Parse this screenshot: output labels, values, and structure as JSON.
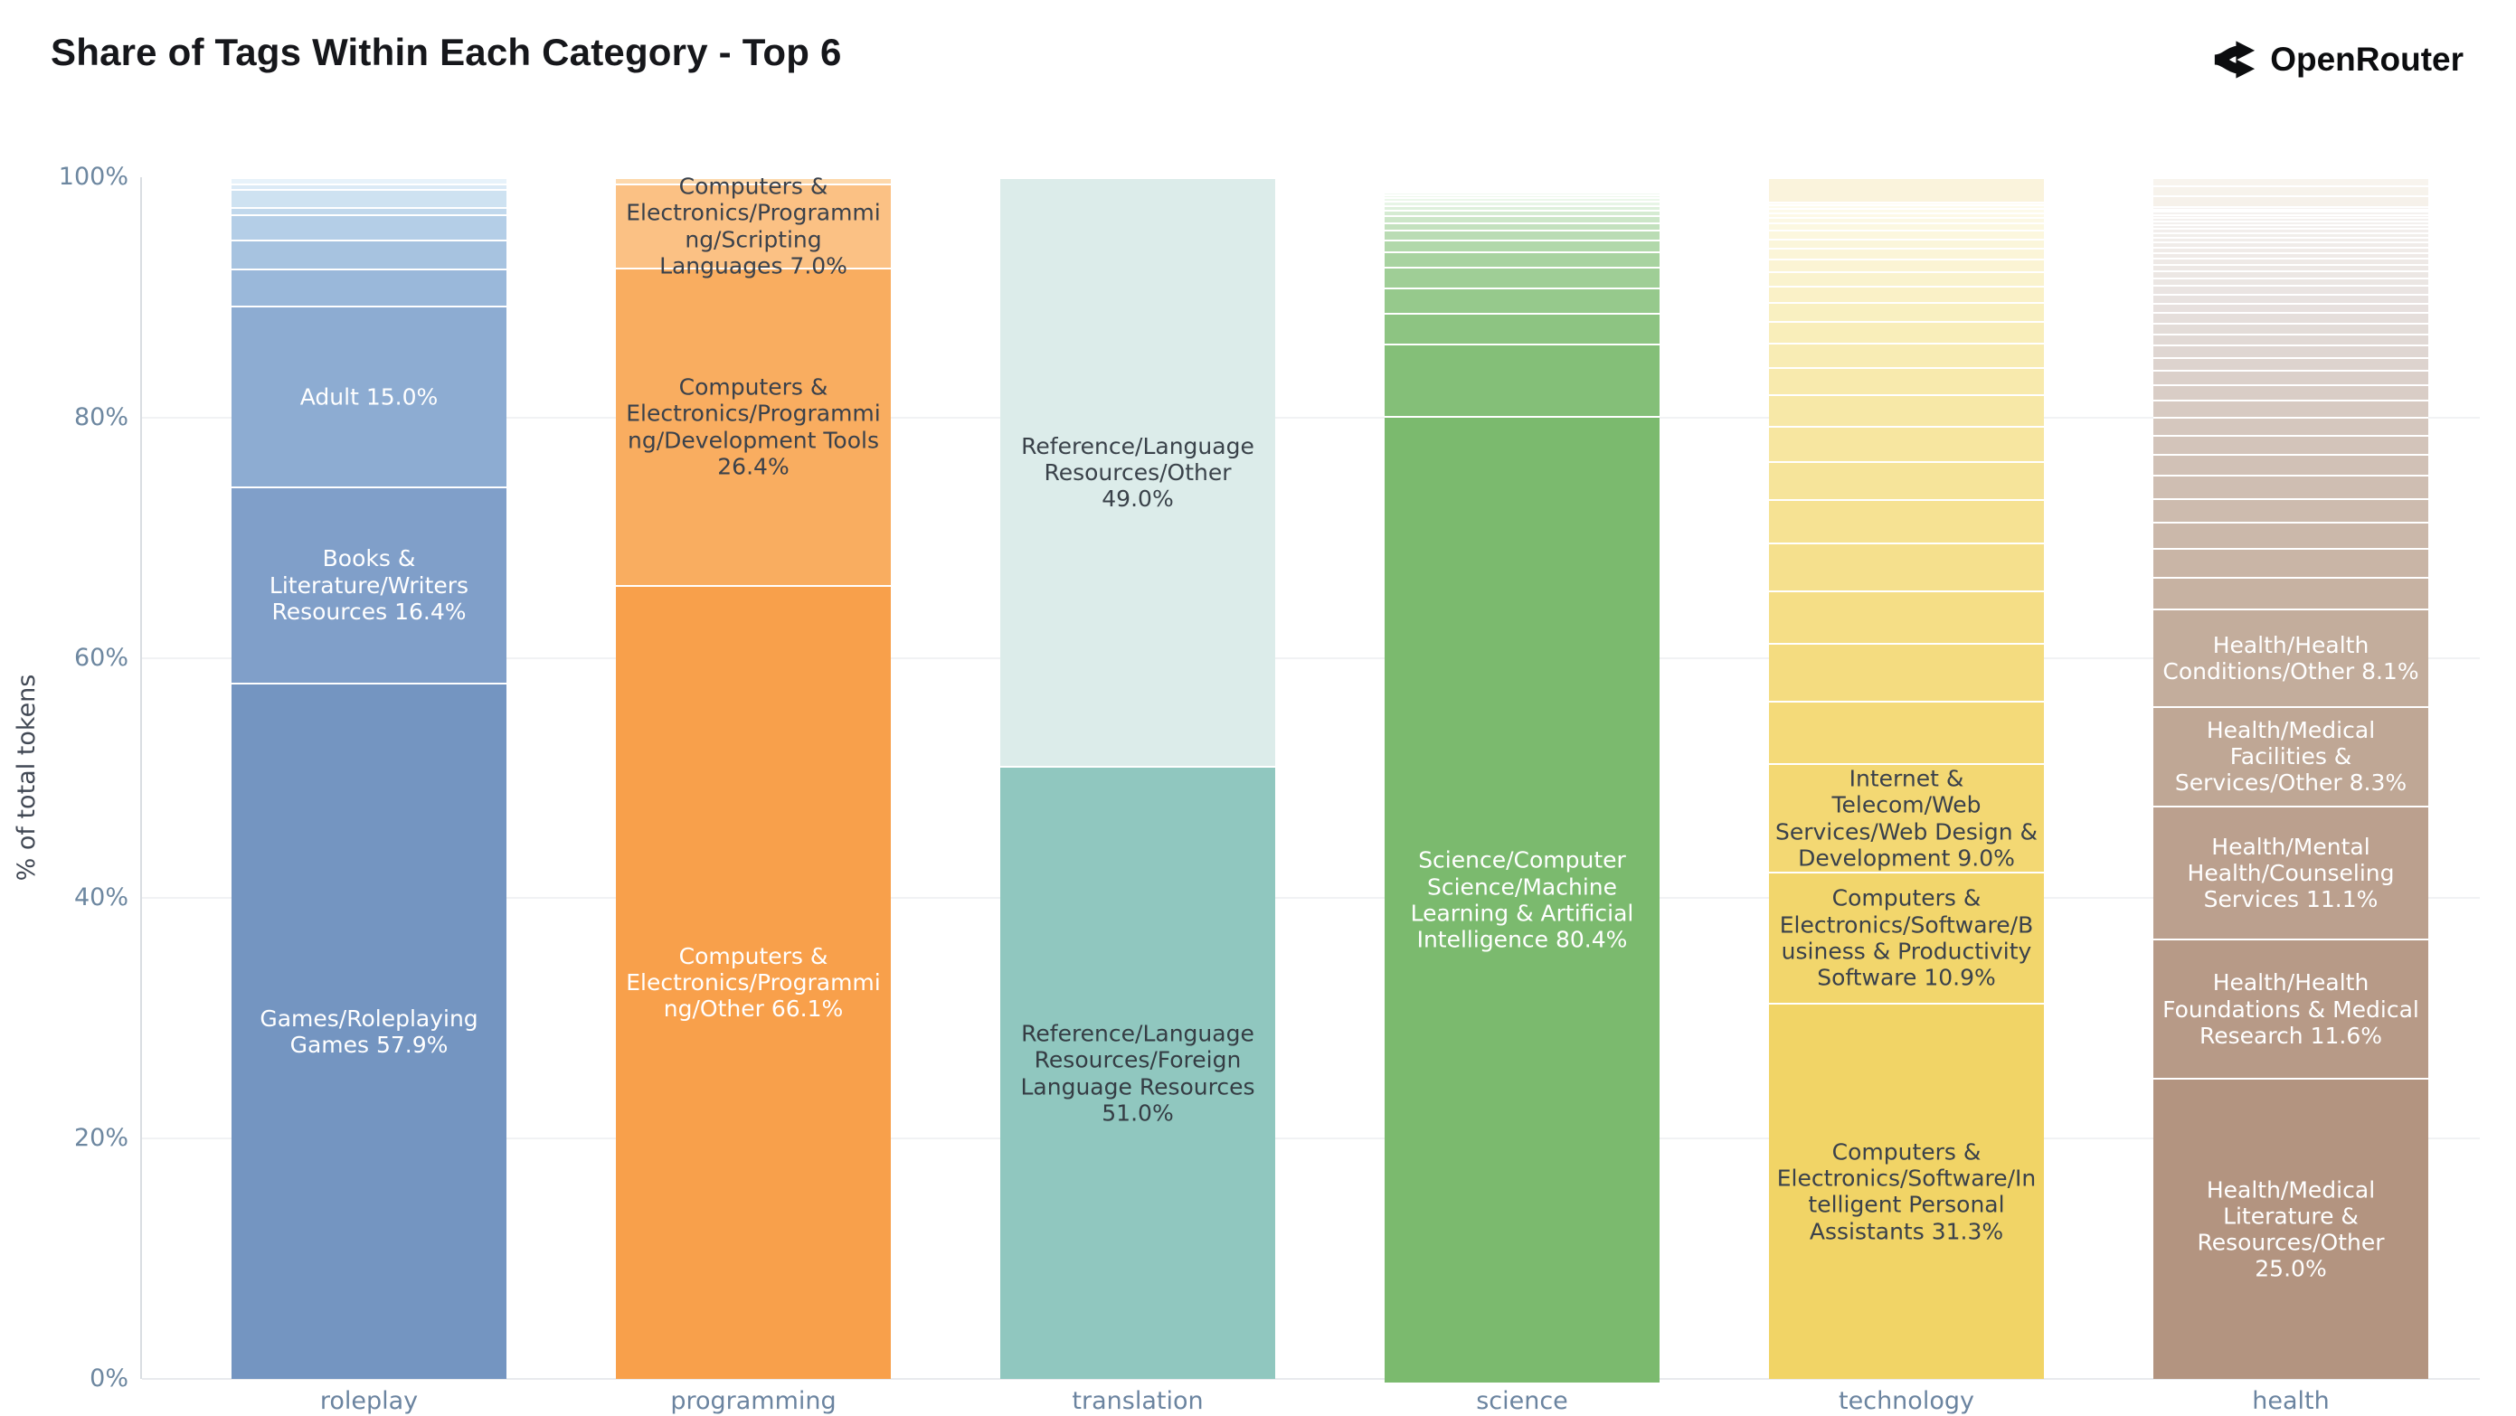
{
  "title": "Share of Tags Within Each Category - Top 6",
  "brand": {
    "name": "OpenRouter",
    "icon": "openrouter-fork-icon",
    "color": "#0c0d0f"
  },
  "chart_data": {
    "type": "bar",
    "variant": "stacked-percent-column",
    "title": "Share of Tags Within Each Category - Top 6",
    "xlabel": "",
    "ylabel": "% of total tokens",
    "ylim": [
      0,
      100
    ],
    "grid": "faint horizontal gridlines at 20/40/60/80, light left axis line",
    "legend_position": "none (labels drawn inside segments)",
    "yticks": [
      {
        "label": "0%",
        "value": 0
      },
      {
        "label": "20%",
        "value": 20
      },
      {
        "label": "40%",
        "value": 40
      },
      {
        "label": "60%",
        "value": 60
      },
      {
        "label": "80%",
        "value": 80
      },
      {
        "label": "100%",
        "value": 100
      }
    ],
    "categories": [
      "roleplay",
      "programming",
      "translation",
      "science",
      "technology",
      "health"
    ],
    "label_dark_color": "#3a414b",
    "label_light_color": "#ffffff",
    "bars": [
      {
        "category": "roleplay",
        "segments": [
          {
            "label": "Games/Roleplaying Games 57.9%",
            "v": 57.9,
            "c": "#7495c1",
            "tc": "#ffffff"
          },
          {
            "label": "Books & Literature/Writers Resources 16.4%",
            "v": 16.4,
            "c": "#809fc9",
            "tc": "#ffffff"
          },
          {
            "label": "Adult 15.0%",
            "v": 15.0,
            "c": "#8dacd2",
            "tc": "#ffffff"
          },
          {
            "v": 3.1,
            "c": "#9ab8da"
          },
          {
            "v": 2.4,
            "c": "#a7c3e0"
          },
          {
            "v": 2.1,
            "c": "#b4cee7"
          },
          {
            "v": 0.6,
            "c": "#c1d8ec"
          },
          {
            "v": 1.5,
            "c": "#cee2f1"
          },
          {
            "v": 0.5,
            "c": "#dbeaf6"
          },
          {
            "v": 0.5,
            "c": "#e7f2fa"
          }
        ]
      },
      {
        "category": "programming",
        "segments": [
          {
            "label": "Computers & Electronics/Programming/Other 66.1%",
            "v": 66.1,
            "c": "#f8a04b",
            "tc": "#ffffff"
          },
          {
            "label": "Computers & Electronics/Programming/Development Tools 26.4%",
            "v": 26.4,
            "c": "#f9ad60",
            "tc": "#3a414b"
          },
          {
            "label": "Computers & Electronics/Programming/Scripting Languages 7.0%",
            "v": 7.0,
            "c": "#fbc184",
            "tc": "#3a414b"
          },
          {
            "v": 0.5,
            "c": "#fdd8ab"
          }
        ]
      },
      {
        "category": "translation",
        "segments": [
          {
            "label": "Reference/Language Resources/Foreign Language Resources 51.0%",
            "v": 51.0,
            "c": "#90c7bf",
            "tc": "#353d44"
          },
          {
            "label": "Reference/Language Resources/Other 49.0%",
            "v": 49.0,
            "c": "#dcecea",
            "tc": "#3a424a"
          }
        ]
      },
      {
        "category": "science",
        "segments": [
          {
            "label": "Science/Computer Science/Machine Learning & Artificial Intelligence 80.4%",
            "v": 80.4,
            "c": "#7bba6e",
            "tc": "#ffffff"
          },
          {
            "v": 6.0,
            "c": "#84bf78"
          },
          {
            "v": 2.6,
            "c": "#8dc482"
          },
          {
            "v": 2.1,
            "c": "#96c98c"
          },
          {
            "v": 1.7,
            "c": "#9fce96"
          },
          {
            "v": 1.3,
            "c": "#a8d3a0"
          },
          {
            "v": 1.0,
            "c": "#b1d8aa"
          },
          {
            "v": 0.8,
            "c": "#badcb4"
          },
          {
            "v": 0.65,
            "c": "#c3e1be"
          },
          {
            "v": 0.55,
            "c": "#cce6c8"
          },
          {
            "v": 0.45,
            "c": "#d5ebd2"
          },
          {
            "v": 0.4,
            "c": "#def0dc"
          },
          {
            "v": 0.35,
            "c": "#e7f5e6"
          },
          {
            "v": 0.3,
            "c": "#ebf7ea"
          },
          {
            "v": 0.25,
            "c": "#eef8ed"
          },
          {
            "v": 0.2,
            "c": "#f1f9f0"
          },
          {
            "v": 0.18,
            "c": "#f3faf2"
          },
          {
            "v": 0.15,
            "c": "#f5fbf4"
          },
          {
            "v": 0.12,
            "c": "#f7fcf6"
          },
          {
            "v": 0.1,
            "c": "#f9fdf8"
          },
          {
            "v": 0.1,
            "c": "#fafdf9"
          },
          {
            "v": 0.1,
            "c": "#fbfefa"
          },
          {
            "v": 0.1,
            "c": "#fcfefb"
          },
          {
            "v": 0.1,
            "c": "#fdfefc"
          }
        ]
      },
      {
        "category": "technology",
        "segments": [
          {
            "label": "Computers & Electronics/Software/Intelligent Personal Assistants 31.3%",
            "v": 31.3,
            "c": "#f1d466",
            "tc": "#3a414b"
          },
          {
            "label": "Computers & Electronics/Software/Business & Productivity Software 10.9%",
            "v": 10.9,
            "c": "#f2d66c",
            "tc": "#3a414b"
          },
          {
            "label": "Internet & Telecom/Web Services/Web Design & Development 9.0%",
            "v": 9.0,
            "c": "#f3d873",
            "tc": "#3a414b"
          },
          {
            "v": 5.2,
            "c": "#f4da79"
          },
          {
            "v": 4.8,
            "c": "#f4dc80"
          },
          {
            "v": 4.4,
            "c": "#f5de86"
          },
          {
            "v": 4.0,
            "c": "#f5e08d"
          },
          {
            "v": 3.6,
            "c": "#f6e293"
          },
          {
            "v": 3.2,
            "c": "#f6e49a"
          },
          {
            "v": 2.9,
            "c": "#f7e6a0"
          },
          {
            "v": 2.6,
            "c": "#f7e8a7"
          },
          {
            "v": 2.3,
            "c": "#f8eaad"
          },
          {
            "v": 2.0,
            "c": "#f8ecb4"
          },
          {
            "v": 1.8,
            "c": "#f9eeba"
          },
          {
            "v": 1.6,
            "c": "#f9f0c1"
          },
          {
            "v": 1.4,
            "c": "#faf1c7"
          },
          {
            "v": 1.2,
            "c": "#faf3ce"
          },
          {
            "v": 1.0,
            "c": "#fbf4d4"
          },
          {
            "v": 0.9,
            "c": "#fbf5d8"
          },
          {
            "v": 0.8,
            "c": "#fbf6db"
          },
          {
            "v": 0.7,
            "c": "#fcf7de"
          },
          {
            "v": 0.6,
            "c": "#fcf8e1"
          },
          {
            "v": 0.5,
            "c": "#fcf8e4"
          },
          {
            "v": 0.4,
            "c": "#fdf9e7"
          },
          {
            "v": 0.35,
            "c": "#fdfaea"
          },
          {
            "v": 0.3,
            "c": "#fdfbed"
          },
          {
            "v": 0.25,
            "c": "#fefbf0"
          },
          {
            "v": 2.0,
            "c": "#faf3dc"
          }
        ]
      },
      {
        "category": "health",
        "segments": [
          {
            "label": "Health/Medical Literature & Resources/Other 25.0%",
            "v": 25.0,
            "c": "#b39480",
            "tc": "#ffffff"
          },
          {
            "label": "Health/Health Foundations & Medical Research 11.6%",
            "v": 11.6,
            "c": "#b79a87",
            "tc": "#ffffff"
          },
          {
            "label": "Health/Mental Health/Counseling Services 11.1%",
            "v": 11.1,
            "c": "#bba08e",
            "tc": "#ffffff"
          },
          {
            "label": "Health/Medical Facilities & Services/Other 8.3%",
            "v": 8.3,
            "c": "#bfa795",
            "tc": "#ffffff"
          },
          {
            "label": "Health/Health Conditions/Other 8.1%",
            "v": 8.1,
            "c": "#c3ad9c",
            "tc": "#ffffff"
          },
          {
            "v": 2.6,
            "c": "#c7b2a2"
          },
          {
            "v": 2.4,
            "c": "#c9b5a6"
          },
          {
            "v": 2.2,
            "c": "#cbb8aa"
          },
          {
            "v": 2.0,
            "c": "#cdbbae"
          },
          {
            "v": 1.9,
            "c": "#cfbeb2"
          },
          {
            "v": 1.75,
            "c": "#d1c1b6"
          },
          {
            "v": 1.6,
            "c": "#d3c4ba"
          },
          {
            "v": 1.5,
            "c": "#d5c7be"
          },
          {
            "v": 1.4,
            "c": "#d7cac2"
          },
          {
            "v": 1.3,
            "c": "#d9cdc6"
          },
          {
            "v": 1.2,
            "c": "#dbd0ca"
          },
          {
            "v": 1.1,
            "c": "#ddd3ce"
          },
          {
            "v": 1.0,
            "c": "#dfd6d2"
          },
          {
            "v": 0.95,
            "c": "#e1d9d5"
          },
          {
            "v": 0.9,
            "c": "#e3dcd8"
          },
          {
            "v": 0.85,
            "c": "#e5dedb"
          },
          {
            "v": 0.8,
            "c": "#e7e0de"
          },
          {
            "v": 0.75,
            "c": "#e8e2e0"
          },
          {
            "v": 0.7,
            "c": "#eae4e2"
          },
          {
            "v": 0.65,
            "c": "#ebe6e3"
          },
          {
            "v": 0.6,
            "c": "#ece7e4"
          },
          {
            "v": 0.55,
            "c": "#ede8e5"
          },
          {
            "v": 0.5,
            "c": "#eee9e6"
          },
          {
            "v": 0.48,
            "c": "#efeae7"
          },
          {
            "v": 0.45,
            "c": "#f0ebe8"
          },
          {
            "v": 0.42,
            "c": "#f0ece9"
          },
          {
            "v": 0.4,
            "c": "#f1edea"
          },
          {
            "v": 0.38,
            "c": "#f1eeeb"
          },
          {
            "v": 0.35,
            "c": "#f2eeec"
          },
          {
            "v": 0.32,
            "c": "#f2efed"
          },
          {
            "v": 0.3,
            "c": "#f3f0ee"
          },
          {
            "v": 0.28,
            "c": "#f3f0ee"
          },
          {
            "v": 0.26,
            "c": "#f4f1ef"
          },
          {
            "v": 0.24,
            "c": "#f4f1ef"
          },
          {
            "v": 0.22,
            "c": "#f5f2f0"
          },
          {
            "v": 0.2,
            "c": "#f5f2f0"
          },
          {
            "v": 0.9,
            "c": "#f6f1ea"
          },
          {
            "v": 0.8,
            "c": "#f7f3ec"
          },
          {
            "v": 0.7,
            "c": "#f8f4ee"
          }
        ]
      }
    ]
  }
}
